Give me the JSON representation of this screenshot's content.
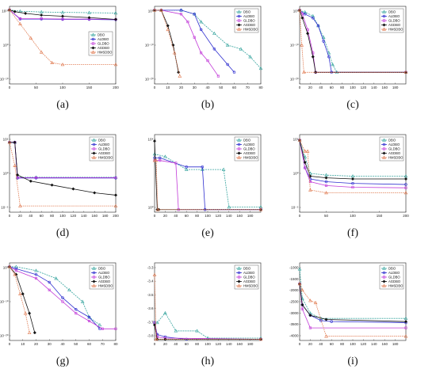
{
  "figure": {
    "series_names": [
      "DBO",
      "ALDBO",
      "GLDBO",
      "AGDBO",
      "HMSDBO"
    ],
    "series_colors": [
      "#3aa6a0",
      "#2f2fcf",
      "#c23bd8",
      "#111111",
      "#e07a50"
    ],
    "series_markers": [
      "triangle",
      "circle",
      "square",
      "diamond",
      "triangle"
    ]
  },
  "chart_data": [
    {
      "type": "line",
      "label": "(a)",
      "y_scale": "log",
      "ylim": [
        -12,
        10
      ],
      "y_ticks": [
        "10¹⁰",
        "10⁰",
        "10⁻¹⁰"
      ],
      "x_ticks": [
        "0",
        "50",
        "100",
        "150",
        "200"
      ],
      "xlim": [
        0,
        200
      ],
      "legend_position": "right",
      "series": [
        {
          "name": "DBO",
          "x": [
            0,
            20,
            60,
            100,
            150,
            200
          ],
          "y": [
            9,
            8.6,
            8.4,
            8.3,
            8.2,
            8.1
          ]
        },
        {
          "name": "ALDBO",
          "x": [
            0,
            20,
            60,
            100,
            150,
            200
          ],
          "y": [
            9,
            6.4,
            6.4,
            6.3,
            6.3,
            6.2
          ]
        },
        {
          "name": "GLDBO",
          "x": [
            0,
            20,
            60,
            100,
            150,
            200
          ],
          "y": [
            9,
            6.5,
            6.5,
            6.4,
            6.4,
            6.3
          ]
        },
        {
          "name": "AGDBO",
          "x": [
            0,
            10,
            30,
            60,
            100,
            150,
            200
          ],
          "y": [
            9,
            8.5,
            8.0,
            7.5,
            7.2,
            6.8,
            6.3
          ]
        },
        {
          "name": "HMSDBO",
          "x": [
            0,
            20,
            40,
            60,
            80,
            100,
            200
          ],
          "y": [
            9,
            5,
            1,
            -3,
            -6,
            -6.5,
            -6.5
          ]
        }
      ]
    },
    {
      "type": "line",
      "label": "(b)",
      "y_scale": "log",
      "ylim": [
        -20,
        0
      ],
      "y_ticks": [
        "10⁰",
        "10⁻¹⁰",
        "10⁻²⁰"
      ],
      "x_ticks": [
        "0",
        "10",
        "20",
        "30",
        "40",
        "50",
        "60",
        "70",
        "80"
      ],
      "xlim": [
        0,
        80
      ],
      "legend_position": "top-right",
      "series": [
        {
          "name": "DBO",
          "x": [
            0,
            5,
            20,
            30,
            35,
            45,
            55,
            65,
            72,
            80
          ],
          "y": [
            -1,
            -1,
            -1,
            -2,
            -4,
            -7,
            -10,
            -11,
            -13,
            -16
          ]
        },
        {
          "name": "ALDBO",
          "x": [
            0,
            5,
            20,
            30,
            35,
            45,
            55,
            60
          ],
          "y": [
            -1,
            -1,
            -1,
            -2,
            -6,
            -11,
            -15,
            -17
          ]
        },
        {
          "name": "GLDBO",
          "x": [
            0,
            5,
            20,
            25,
            30,
            35,
            40,
            48
          ],
          "y": [
            -1,
            -1,
            -2,
            -4,
            -8,
            -12,
            -14,
            -18
          ]
        },
        {
          "name": "AGDBO",
          "x": [
            0,
            5,
            10,
            14,
            18
          ],
          "y": [
            -1,
            -1,
            -5,
            -10,
            -17
          ]
        },
        {
          "name": "HMSDBO",
          "x": [
            0,
            5,
            10,
            15,
            19
          ],
          "y": [
            -1,
            -1,
            -6,
            -12,
            -18
          ]
        }
      ]
    },
    {
      "type": "line",
      "label": "(c)",
      "y_scale": "log",
      "ylim": [
        -20,
        0
      ],
      "y_ticks": [
        "10⁰",
        "10⁻¹⁰",
        "10⁻²⁰"
      ],
      "x_ticks": [
        "0",
        "20",
        "40",
        "60",
        "80",
        "100",
        "120",
        "140",
        "160",
        "180"
      ],
      "xlim": [
        0,
        200
      ],
      "legend_position": "top-right",
      "series": [
        {
          "name": "DBO",
          "x": [
            0,
            10,
            25,
            35,
            45,
            55,
            62,
            70,
            200
          ],
          "y": [
            -1,
            -1.5,
            -2.5,
            -5,
            -8,
            -12,
            -15,
            -17,
            -17
          ]
        },
        {
          "name": "ALDBO",
          "x": [
            0,
            10,
            25,
            35,
            45,
            55,
            60,
            200
          ],
          "y": [
            -1,
            -2,
            -3,
            -5,
            -9,
            -13,
            -17,
            -17
          ]
        },
        {
          "name": "GLDBO",
          "x": [
            0,
            5,
            15,
            25,
            30,
            200
          ],
          "y": [
            -1,
            -2,
            -6,
            -12,
            -17,
            -17
          ]
        },
        {
          "name": "AGDBO",
          "x": [
            0,
            5,
            15,
            25,
            30,
            200
          ],
          "y": [
            -1,
            -3,
            -7,
            -13,
            -17,
            -17
          ]
        },
        {
          "name": "HMSDBO",
          "x": [
            0,
            4,
            8,
            200
          ],
          "y": [
            -1,
            -10,
            -17,
            -17
          ]
        }
      ]
    },
    {
      "type": "line",
      "label": "(d)",
      "y_scale": "log",
      "ylim": [
        -4,
        6
      ],
      "y_ticks": [
        "10⁵",
        "10⁰",
        "10⁻⁵"
      ],
      "x_ticks": [
        "0",
        "20",
        "40",
        "60",
        "80",
        "100",
        "120",
        "140",
        "160",
        "180",
        "200"
      ],
      "xlim": [
        0,
        200
      ],
      "legend_position": "top-right",
      "series": [
        {
          "name": "DBO",
          "x": [
            0,
            10,
            15,
            50,
            200
          ],
          "y": [
            5,
            5,
            0.5,
            0.5,
            0.5
          ]
        },
        {
          "name": "ALDBO",
          "x": [
            0,
            10,
            15,
            50,
            200
          ],
          "y": [
            5,
            5,
            0.4,
            0.4,
            0.4
          ]
        },
        {
          "name": "GLDBO",
          "x": [
            0,
            10,
            15,
            50,
            200
          ],
          "y": [
            5,
            5,
            0.45,
            0.45,
            0.45
          ]
        },
        {
          "name": "AGDBO",
          "x": [
            0,
            10,
            15,
            40,
            80,
            120,
            160,
            200
          ],
          "y": [
            5,
            5,
            0.8,
            0,
            -0.5,
            -1,
            -1.5,
            -1.8
          ]
        },
        {
          "name": "HMSDBO",
          "x": [
            0,
            10,
            20,
            200
          ],
          "y": [
            5,
            2,
            -3.2,
            -3.2
          ]
        }
      ]
    },
    {
      "type": "line",
      "label": "(e)",
      "y_scale": "log",
      "ylim": [
        0,
        6
      ],
      "y_ticks": [
        "10⁴",
        "10⁰"
      ],
      "x_ticks": [
        "0",
        "20",
        "40",
        "60",
        "80",
        "100",
        "120",
        "140",
        "160",
        "180"
      ],
      "xlim": [
        0,
        200
      ],
      "legend_position": "top-right",
      "series": [
        {
          "name": "DBO",
          "x": [
            0,
            20,
            60,
            90,
            130,
            140,
            200
          ],
          "y": [
            4.5,
            4.3,
            3.3,
            3.3,
            3.3,
            0.4,
            0.4
          ]
        },
        {
          "name": "ALDBO",
          "x": [
            0,
            10,
            60,
            90,
            95,
            200
          ],
          "y": [
            4.2,
            4.2,
            3.5,
            3.5,
            0.2,
            0.2
          ]
        },
        {
          "name": "GLDBO",
          "x": [
            0,
            10,
            40,
            45,
            200
          ],
          "y": [
            4,
            4,
            3.8,
            0.2,
            0.2
          ]
        },
        {
          "name": "AGDBO",
          "x": [
            0,
            5,
            8,
            200
          ],
          "y": [
            5.5,
            0.2,
            0.2,
            0.2
          ]
        },
        {
          "name": "HMSDBO",
          "x": [
            0,
            3,
            6,
            200
          ],
          "y": [
            4,
            4,
            0.2,
            0.2
          ]
        }
      ]
    },
    {
      "type": "line",
      "label": "(f)",
      "y_scale": "log",
      "ylim": [
        -8,
        6
      ],
      "y_ticks": [
        "10⁵",
        "10⁰",
        "10⁻⁵"
      ],
      "x_ticks": [
        "0",
        "50",
        "100",
        "150",
        "200"
      ],
      "xlim": [
        0,
        200
      ],
      "legend_position": "top-right",
      "series": [
        {
          "name": "DBO",
          "x": [
            0,
            10,
            20,
            50,
            100,
            200
          ],
          "y": [
            5,
            2,
            -1,
            -1.3,
            -1.5,
            -1.5
          ]
        },
        {
          "name": "ALDBO",
          "x": [
            0,
            10,
            20,
            50,
            100,
            200
          ],
          "y": [
            5,
            0,
            -2,
            -2.5,
            -2.8,
            -3
          ]
        },
        {
          "name": "GLDBO",
          "x": [
            0,
            10,
            20,
            50,
            100,
            200
          ],
          "y": [
            5,
            0,
            -2.5,
            -3.2,
            -3.5,
            -3.6
          ]
        },
        {
          "name": "AGDBO",
          "x": [
            0,
            10,
            20,
            50,
            100,
            200
          ],
          "y": [
            5,
            1,
            -1.5,
            -1.8,
            -2,
            -2
          ]
        },
        {
          "name": "HMSDBO",
          "x": [
            0,
            10,
            15,
            20,
            50,
            200
          ],
          "y": [
            5,
            3,
            3,
            -4,
            -4.5,
            -4.5
          ]
        }
      ]
    },
    {
      "type": "line",
      "label": "(g)",
      "y_scale": "log",
      "ylim": [
        -20,
        0
      ],
      "y_ticks": [
        "10⁰",
        "10⁻¹⁰",
        "10⁻²⁰"
      ],
      "x_ticks": [
        "0",
        "10",
        "20",
        "30",
        "40",
        "50",
        "60",
        "70",
        "80"
      ],
      "xlim": [
        0,
        80
      ],
      "legend_position": "top-right",
      "series": [
        {
          "name": "DBO",
          "x": [
            0,
            5,
            20,
            35,
            45,
            55,
            60,
            68
          ],
          "y": [
            -1,
            -1,
            -2,
            -4,
            -7,
            -10,
            -14,
            -16
          ]
        },
        {
          "name": "ALDBO",
          "x": [
            0,
            5,
            20,
            30,
            40,
            50,
            60,
            68
          ],
          "y": [
            -1,
            -1.5,
            -3,
            -5,
            -9,
            -12,
            -14,
            -17
          ]
        },
        {
          "name": "GLDBO",
          "x": [
            0,
            5,
            20,
            30,
            40,
            50,
            60,
            70,
            80
          ],
          "y": [
            -1,
            -2,
            -4,
            -7,
            -10,
            -13,
            -15,
            -17,
            -17
          ]
        },
        {
          "name": "AGDBO",
          "x": [
            0,
            5,
            10,
            15,
            19
          ],
          "y": [
            -1,
            -3,
            -8,
            -13,
            -18
          ]
        },
        {
          "name": "HMSDBO",
          "x": [
            0,
            4,
            8,
            12,
            15
          ],
          "y": [
            -1,
            -3,
            -8,
            -13,
            -18
          ]
        }
      ]
    },
    {
      "type": "line",
      "label": "(h)",
      "y_scale": "linear",
      "ylim": [
        -3.85,
        -3.2
      ],
      "y_ticks": [
        "-3.3",
        "-3.4",
        "-3.5",
        "-3.6",
        "-3.7",
        "-3.8"
      ],
      "x_ticks": [
        "0",
        "20",
        "40",
        "60",
        "80",
        "100",
        "120",
        "140",
        "160",
        "180"
      ],
      "xlim": [
        0,
        200
      ],
      "legend_position": "top-right",
      "series": [
        {
          "name": "DBO",
          "x": [
            0,
            5,
            20,
            40,
            80,
            100,
            200
          ],
          "y": [
            -3.7,
            -3.7,
            -3.62,
            -3.77,
            -3.77,
            -3.83,
            -3.83
          ]
        },
        {
          "name": "ALDBO",
          "x": [
            0,
            5,
            20,
            60,
            200
          ],
          "y": [
            -3.7,
            -3.8,
            -3.82,
            -3.84,
            -3.84
          ]
        },
        {
          "name": "GLDBO",
          "x": [
            0,
            5,
            20,
            200
          ],
          "y": [
            -3.7,
            -3.82,
            -3.83,
            -3.84
          ]
        },
        {
          "name": "AGDBO",
          "x": [
            0,
            5,
            20,
            200
          ],
          "y": [
            -3.72,
            -3.84,
            -3.84,
            -3.84
          ]
        },
        {
          "name": "HMSDBO",
          "x": [
            0,
            3,
            200
          ],
          "y": [
            -3.3,
            -3.84,
            -3.84
          ]
        }
      ]
    },
    {
      "type": "line",
      "label": "(i)",
      "y_scale": "linear",
      "ylim": [
        -4200,
        -500
      ],
      "y_ticks": [
        "-1000",
        "-1500",
        "-2000",
        "-2500",
        "-3000",
        "-3500",
        "-4000"
      ],
      "x_ticks": [
        "0",
        "20",
        "40",
        "60",
        "80",
        "100",
        "120",
        "140",
        "160",
        "180"
      ],
      "xlim": [
        0,
        200
      ],
      "legend_position": "top-right",
      "series": [
        {
          "name": "DBO",
          "x": [
            0,
            5,
            20,
            40,
            200
          ],
          "y": [
            -800,
            -2200,
            -2900,
            -3150,
            -3150
          ]
        },
        {
          "name": "ALDBO",
          "x": [
            0,
            5,
            20,
            40,
            60,
            200
          ],
          "y": [
            -1500,
            -2500,
            -3000,
            -3250,
            -3300,
            -3350
          ]
        },
        {
          "name": "GLDBO",
          "x": [
            0,
            5,
            20,
            200
          ],
          "y": [
            -1500,
            -2700,
            -3600,
            -3600
          ]
        },
        {
          "name": "AGDBO",
          "x": [
            0,
            5,
            20,
            50,
            200
          ],
          "y": [
            -1500,
            -2500,
            -3000,
            -3200,
            -3300
          ]
        },
        {
          "name": "HMSDBO",
          "x": [
            0,
            5,
            20,
            30,
            50,
            200
          ],
          "y": [
            -1500,
            -1800,
            -2300,
            -2400,
            -4000,
            -4000
          ]
        }
      ]
    }
  ]
}
